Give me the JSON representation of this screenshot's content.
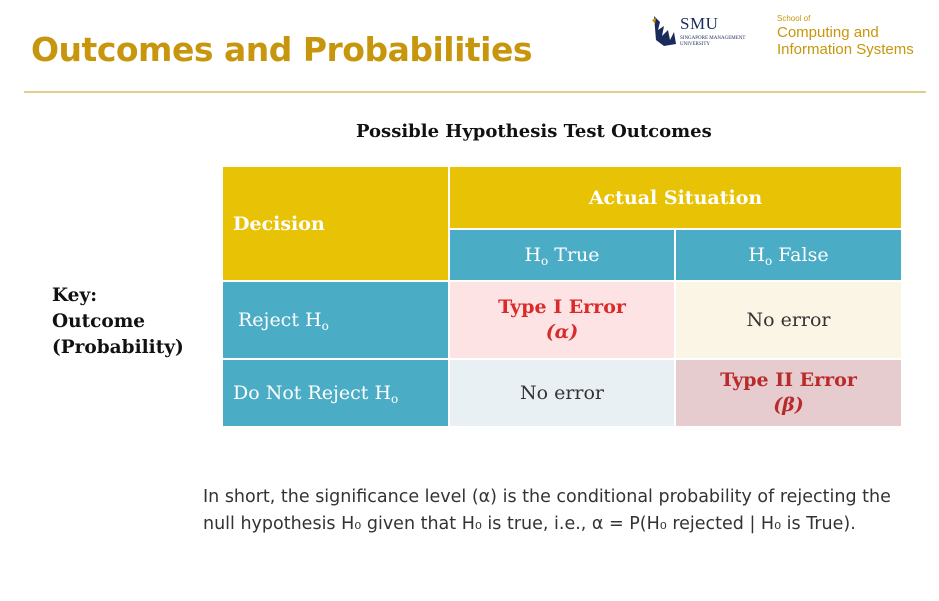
{
  "header": {
    "title": "Outcomes and Probabilities",
    "logo_smu": "SMU",
    "logo_smu_sub": "SINGAPORE MANAGEMENT UNIVERSITY",
    "school_line1": "School of",
    "school_line2": "Computing and",
    "school_line3": "Information Systems"
  },
  "table": {
    "title": "Possible Hypothesis Test Outcomes",
    "decision_header": "Decision",
    "actual_header": "Actual Situation",
    "col1_base": "H",
    "col1_sub": "o",
    "col1_rest": " True",
    "col2_base": "H",
    "col2_sub": "o",
    "col2_rest": " False",
    "row1_label": "Reject H",
    "row1_sub": "o",
    "row1_col1_line1": "Type I Error",
    "row1_col1_line2": "(α)",
    "row1_col2": "No error",
    "row2_label": "Do Not Reject H",
    "row2_sub": "o",
    "row2_col1": "No error",
    "row2_col2_line1": "Type II Error",
    "row2_col2_line2": "(β)"
  },
  "key": {
    "line1": "Key:",
    "line2": "Outcome",
    "line3": "(Probability)"
  },
  "summary": {
    "line1": "In short, the significance level (α) is the conditional probability of rejecting the",
    "line2": "null hypothesis H₀ given that H₀ is true, i.e., α = P(H₀ rejected | H₀ is True)."
  },
  "colors": {
    "gold": "#e8c204",
    "teal": "#4bacc6",
    "title": "#c8960c"
  }
}
